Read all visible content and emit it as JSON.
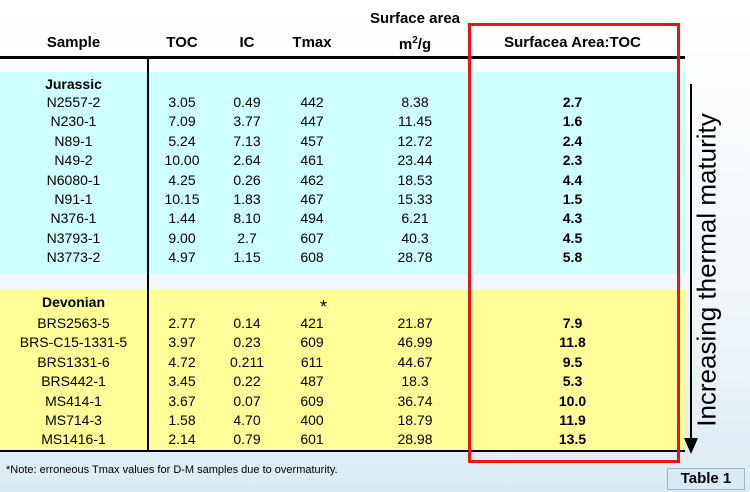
{
  "headers": {
    "sample": "Sample",
    "toc": "TOC",
    "ic": "IC",
    "tmax": "Tmax",
    "surface_area_line1": "Surface area",
    "surface_area_unit": "m",
    "surface_area_sup": "2",
    "surface_area_unit_tail": "/g",
    "ratio": "Surfacea Area:TOC"
  },
  "jurassic": {
    "label": "Jurassic",
    "rows": [
      {
        "sample": "N2557-2",
        "toc": "3.05",
        "ic": "0.49",
        "tmax": "442",
        "sa": "8.38",
        "ratio": "2.7"
      },
      {
        "sample": "N230-1",
        "toc": "7.09",
        "ic": "3.77",
        "tmax": "447",
        "sa": "11.45",
        "ratio": "1.6"
      },
      {
        "sample": "N89-1",
        "toc": "5.24",
        "ic": "7.13",
        "tmax": "457",
        "sa": "12.72",
        "ratio": "2.4"
      },
      {
        "sample": "N49-2",
        "toc": "10.00",
        "ic": "2.64",
        "tmax": "461",
        "sa": "23.44",
        "ratio": "2.3"
      },
      {
        "sample": "N6080-1",
        "toc": "4.25",
        "ic": "0.26",
        "tmax": "462",
        "sa": "18.53",
        "ratio": "4.4"
      },
      {
        "sample": "N91-1",
        "toc": "10.15",
        "ic": "1.83",
        "tmax": "467",
        "sa": "15.33",
        "ratio": "1.5"
      },
      {
        "sample": "N376-1",
        "toc": "1.44",
        "ic": "8.10",
        "tmax": "494",
        "sa": "6.21",
        "ratio": "4.3"
      },
      {
        "sample": "N3793-1",
        "toc": "9.00",
        "ic": "2.7",
        "tmax": "607",
        "sa": "40.3",
        "ratio": "4.5"
      },
      {
        "sample": "N3773-2",
        "toc": "4.97",
        "ic": "1.15",
        "tmax": "608",
        "sa": "28.78",
        "ratio": "5.8"
      }
    ]
  },
  "devonian": {
    "label": "Devonian",
    "asterisk": "*",
    "rows": [
      {
        "sample": "BRS2563-5",
        "toc": "2.77",
        "ic": "0.14",
        "tmax": "421",
        "sa": "21.87",
        "ratio": "7.9"
      },
      {
        "sample": "BRS-C15-1331-5",
        "toc": "3.97",
        "ic": "0.23",
        "tmax": "609",
        "sa": "46.99",
        "ratio": "11.8"
      },
      {
        "sample": "BRS1331-6",
        "toc": "4.72",
        "ic": "0.211",
        "tmax": "611",
        "sa": "44.67",
        "ratio": "9.5"
      },
      {
        "sample": "BRS442-1",
        "toc": "3.45",
        "ic": "0.22",
        "tmax": "487",
        "sa": "18.3",
        "ratio": "5.3"
      },
      {
        "sample": "MS414-1",
        "toc": "3.67",
        "ic": "0.07",
        "tmax": "609",
        "sa": "36.74",
        "ratio": "10.0"
      },
      {
        "sample": "MS714-3",
        "toc": "1.58",
        "ic": "4.70",
        "tmax": "400",
        "sa": "18.79",
        "ratio": "11.9"
      },
      {
        "sample": "MS1416-1",
        "toc": "2.14",
        "ic": "0.79",
        "tmax": "601",
        "sa": "28.98",
        "ratio": "13.5"
      }
    ]
  },
  "side_label": "Increasing thermal maturity",
  "note": "*Note: erroneous Tmax values for D-M samples due to overmaturity.",
  "table_label": "Table 1",
  "colors": {
    "jurassic_band": "#cfffff",
    "devonian_band": "#ffff99",
    "highlight_box": "#e8141a"
  }
}
